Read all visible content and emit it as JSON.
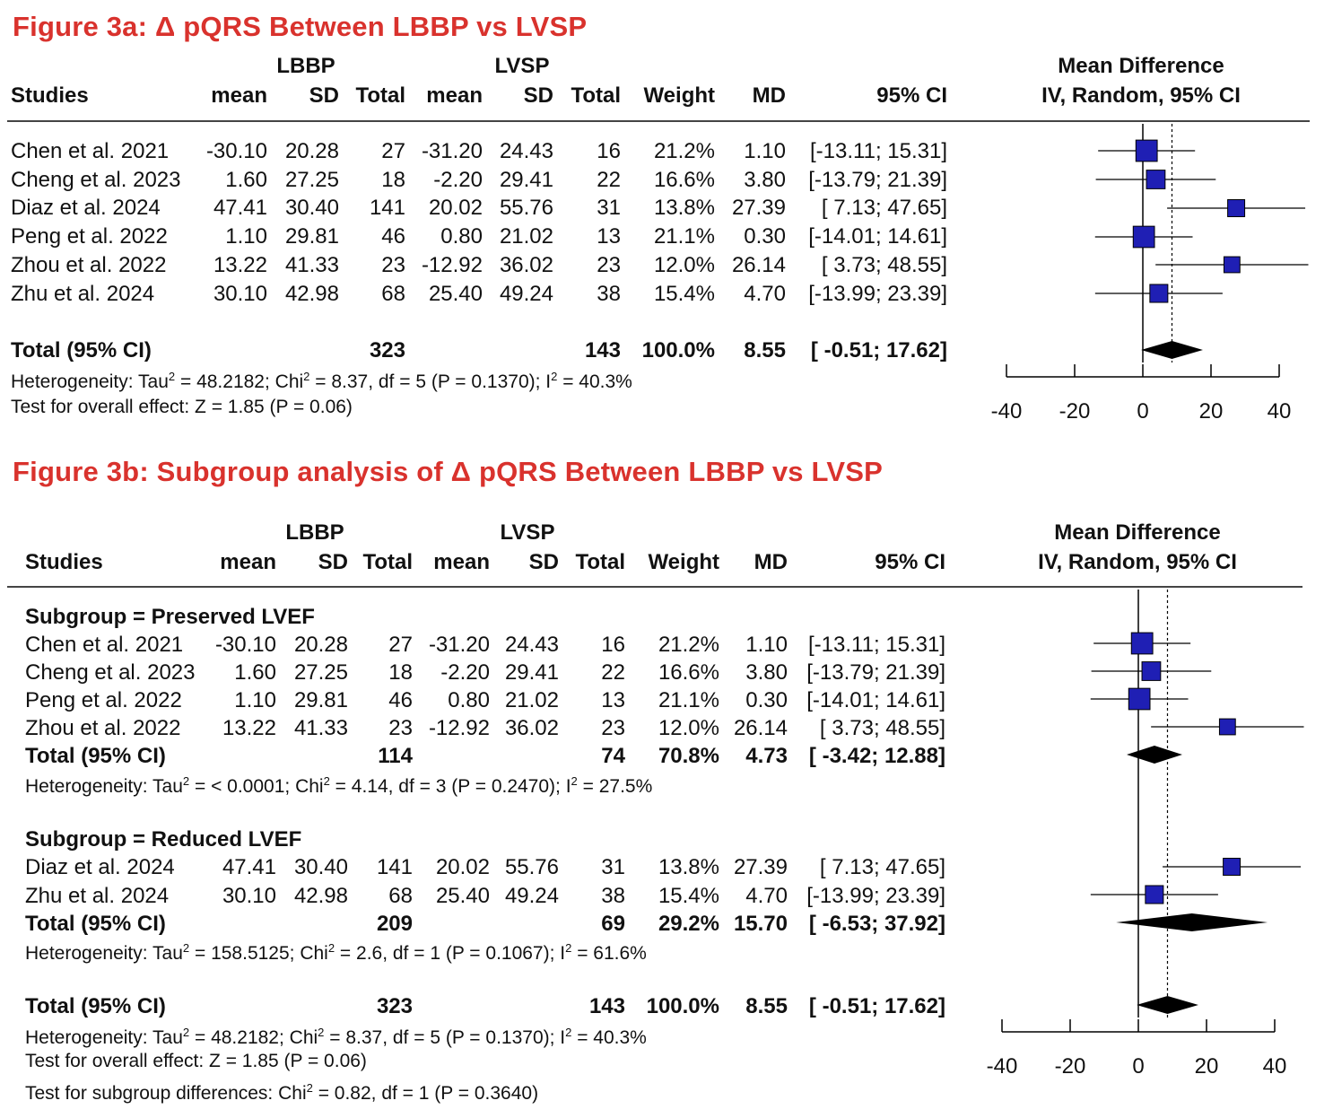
{
  "chart_data": [
    {
      "type": "forest",
      "title": "Figure 3a: Δ pQRS Between LBBP vs LVSP",
      "group_labels": {
        "lbbp": "LBBP",
        "lvsp": "LVSP"
      },
      "headers": {
        "studies": "Studies",
        "mean": "mean",
        "sd": "SD",
        "total": "Total",
        "weight": "Weight",
        "md": "MD",
        "ci": "95% CI"
      },
      "effect_label": [
        "Mean Difference",
        "IV, Random, 95% CI"
      ],
      "xaxis": {
        "min": -40,
        "max": 40,
        "ticks": [
          -40,
          -20,
          0,
          20,
          40
        ],
        "tick_labels": [
          "-40",
          "-20",
          "0",
          "20",
          "40"
        ]
      },
      "studies": [
        {
          "name": "Chen et al. 2021",
          "m1": "-30.10",
          "sd1": "20.28",
          "n1": "27",
          "m2": "-31.20",
          "sd2": "24.43",
          "n2": "16",
          "weight": "21.2%",
          "md": "1.10",
          "ci": "[-13.11; 15.31]",
          "md_value": 1.1,
          "lo": -13.11,
          "hi": 15.31,
          "w": 21.2
        },
        {
          "name": "Cheng et al. 2023",
          "m1": "1.60",
          "sd1": "27.25",
          "n1": "18",
          "m2": "-2.20",
          "sd2": "29.41",
          "n2": "22",
          "weight": "16.6%",
          "md": "3.80",
          "ci": "[-13.79; 21.39]",
          "md_value": 3.8,
          "lo": -13.79,
          "hi": 21.39,
          "w": 16.6
        },
        {
          "name": "Diaz et al. 2024",
          "m1": "47.41",
          "sd1": "30.40",
          "n1": "141",
          "m2": "20.02",
          "sd2": "55.76",
          "n2": "31",
          "weight": "13.8%",
          "md": "27.39",
          "ci": "[ 7.13; 47.65]",
          "md_value": 27.39,
          "lo": 7.13,
          "hi": 47.65,
          "w": 13.8
        },
        {
          "name": "Peng et al. 2022",
          "m1": "1.10",
          "sd1": "29.81",
          "n1": "46",
          "m2": "0.80",
          "sd2": "21.02",
          "n2": "13",
          "weight": "21.1%",
          "md": "0.30",
          "ci": "[-14.01; 14.61]",
          "md_value": 0.3,
          "lo": -14.01,
          "hi": 14.61,
          "w": 21.1
        },
        {
          "name": "Zhou et al. 2022",
          "m1": "13.22",
          "sd1": "41.33",
          "n1": "23",
          "m2": "-12.92",
          "sd2": "36.02",
          "n2": "23",
          "weight": "12.0%",
          "md": "26.14",
          "ci": "[ 3.73; 48.55]",
          "md_value": 26.14,
          "lo": 3.73,
          "hi": 48.55,
          "w": 12.0
        },
        {
          "name": "Zhu et al. 2024",
          "m1": "30.10",
          "sd1": "42.98",
          "n1": "68",
          "m2": "25.40",
          "sd2": "49.24",
          "n2": "38",
          "weight": "15.4%",
          "md": "4.70",
          "ci": "[-13.99; 23.39]",
          "md_value": 4.7,
          "lo": -13.99,
          "hi": 23.39,
          "w": 15.4
        }
      ],
      "total": {
        "name": "Total (95% CI)",
        "n1": "323",
        "n2": "143",
        "weight": "100.0%",
        "md": "8.55",
        "ci": "[ -0.51; 17.62]",
        "md_value": 8.55,
        "lo": -0.51,
        "hi": 17.62
      },
      "heterogeneity": {
        "prefix": "Heterogeneity: Tau",
        "mid1": " = 48.2182; Chi",
        "mid2": " = 8.37, df = 5 (P = 0.1370); I",
        "end": " = 40.3%",
        "sup": "2"
      },
      "overall_effect": "Test for overall effect: Z = 1.85 (P = 0.06)"
    },
    {
      "type": "forest",
      "title": "Figure 3b: Subgroup analysis of Δ pQRS Between LBBP vs LVSP",
      "group_labels": {
        "lbbp": "LBBP",
        "lvsp": "LVSP"
      },
      "headers": {
        "studies": "Studies",
        "mean": "mean",
        "sd": "SD",
        "total": "Total",
        "weight": "Weight",
        "md": "MD",
        "ci": "95% CI"
      },
      "effect_label": [
        "Mean Difference",
        "IV, Random, 95% CI"
      ],
      "xaxis": {
        "min": -40,
        "max": 40,
        "ticks": [
          -40,
          -20,
          0,
          20,
          40
        ],
        "tick_labels": [
          "-40",
          "-20",
          "0",
          "20",
          "40"
        ]
      },
      "subgroups": [
        {
          "label": "Subgroup = Preserved LVEF",
          "studies": [
            {
              "name": "Chen et al. 2021",
              "m1": "-30.10",
              "sd1": "20.28",
              "n1": "27",
              "m2": "-31.20",
              "sd2": "24.43",
              "n2": "16",
              "weight": "21.2%",
              "md": "1.10",
              "ci": "[-13.11; 15.31]",
              "md_value": 1.1,
              "lo": -13.11,
              "hi": 15.31,
              "w": 21.2
            },
            {
              "name": "Cheng et al. 2023",
              "m1": "1.60",
              "sd1": "27.25",
              "n1": "18",
              "m2": "-2.20",
              "sd2": "29.41",
              "n2": "22",
              "weight": "16.6%",
              "md": "3.80",
              "ci": "[-13.79; 21.39]",
              "md_value": 3.8,
              "lo": -13.79,
              "hi": 21.39,
              "w": 16.6
            },
            {
              "name": "Peng et al. 2022",
              "m1": "1.10",
              "sd1": "29.81",
              "n1": "46",
              "m2": "0.80",
              "sd2": "21.02",
              "n2": "13",
              "weight": "21.1%",
              "md": "0.30",
              "ci": "[-14.01; 14.61]",
              "md_value": 0.3,
              "lo": -14.01,
              "hi": 14.61,
              "w": 21.1
            },
            {
              "name": "Zhou et al. 2022",
              "m1": "13.22",
              "sd1": "41.33",
              "n1": "23",
              "m2": "-12.92",
              "sd2": "36.02",
              "n2": "23",
              "weight": "12.0%",
              "md": "26.14",
              "ci": "[ 3.73; 48.55]",
              "md_value": 26.14,
              "lo": 3.73,
              "hi": 48.55,
              "w": 12.0
            }
          ],
          "total": {
            "name": "Total (95% CI)",
            "n1": "114",
            "n2": "74",
            "weight": "70.8%",
            "md": "4.73",
            "ci": "[ -3.42; 12.88]",
            "md_value": 4.73,
            "lo": -3.42,
            "hi": 12.88
          },
          "heterogeneity": {
            "prefix": "Heterogeneity: Tau",
            "mid1": " = < 0.0001; Chi",
            "mid2": " = 4.14, df = 3 (P = 0.2470); I",
            "end": " = 27.5%",
            "sup": "2"
          }
        },
        {
          "label": "Subgroup = Reduced LVEF",
          "studies": [
            {
              "name": "Diaz et al. 2024",
              "m1": "47.41",
              "sd1": "30.40",
              "n1": "141",
              "m2": "20.02",
              "sd2": "55.76",
              "n2": "31",
              "weight": "13.8%",
              "md": "27.39",
              "ci": "[ 7.13; 47.65]",
              "md_value": 27.39,
              "lo": 7.13,
              "hi": 47.65,
              "w": 13.8
            },
            {
              "name": "Zhu et al. 2024",
              "m1": "30.10",
              "sd1": "42.98",
              "n1": "68",
              "m2": "25.40",
              "sd2": "49.24",
              "n2": "38",
              "weight": "15.4%",
              "md": "4.70",
              "ci": "[-13.99; 23.39]",
              "md_value": 4.7,
              "lo": -13.99,
              "hi": 23.39,
              "w": 15.4
            }
          ],
          "total": {
            "name": "Total (95% CI)",
            "n1": "209",
            "n2": "69",
            "weight": "29.2%",
            "md": "15.70",
            "ci": "[ -6.53; 37.92]",
            "md_value": 15.7,
            "lo": -6.53,
            "hi": 37.92
          },
          "heterogeneity": {
            "prefix": "Heterogeneity: Tau",
            "mid1": " = 158.5125; Chi",
            "mid2": " = 2.6, df = 1 (P = 0.1067); I",
            "end": " = 61.6%",
            "sup": "2"
          }
        }
      ],
      "total": {
        "name": "Total (95% CI)",
        "n1": "323",
        "n2": "143",
        "weight": "100.0%",
        "md": "8.55",
        "ci": "[ -0.51; 17.62]",
        "md_value": 8.55,
        "lo": -0.51,
        "hi": 17.62
      },
      "heterogeneity": {
        "prefix": "Heterogeneity: Tau",
        "mid1": " = 48.2182; Chi",
        "mid2": " = 8.37, df = 5 (P = 0.1370); I",
        "end": " = 40.3%",
        "sup": "2"
      },
      "overall_effect": "Test for overall effect: Z = 1.85 (P = 0.06)",
      "subgroup_test": {
        "prefix": "Test for subgroup differences: Chi",
        "end": " = 0.82, df = 1 (P = 0.3640)",
        "sup": "2"
      }
    }
  ],
  "colors": {
    "title": "#d9322d",
    "square": "#1f1fb4",
    "diamond": "#000000",
    "line": "#000000"
  }
}
